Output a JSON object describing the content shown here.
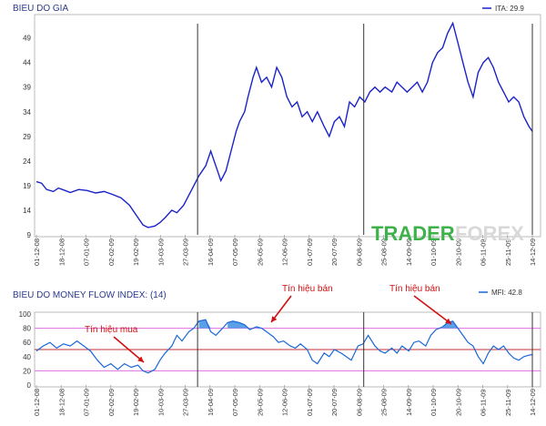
{
  "chart_data": [
    {
      "type": "line",
      "title": "BIEU DO GIA",
      "legend": "ITA: 29.9",
      "legend_position": "top-right",
      "ylim": [
        9,
        53
      ],
      "yticks": [
        9,
        14,
        19,
        24,
        29,
        34,
        39,
        44,
        49
      ],
      "x_tick_labels": [
        "01-12-08",
        "18-12-08",
        "07-01-09",
        "02-02-09",
        "19-02-09",
        "10-03-09",
        "27-03-09",
        "16-04-09",
        "07-05-09",
        "26-05-09",
        "12-06-09",
        "01-07-09",
        "20-07-09",
        "06-08-09",
        "25-08-09",
        "14-09-09",
        "01-10-09",
        "20-10-09",
        "06-11-09",
        "25-11-09",
        "14-12-09"
      ],
      "vertical_markers_at_tick_index": [
        6.5,
        13.2,
        20.0
      ],
      "series": [
        {
          "color": "#1a22c8",
          "points": [
            [
              0,
              19.8
            ],
            [
              0.3,
              19.5
            ],
            [
              0.6,
              18.2
            ],
            [
              1,
              17.8
            ],
            [
              1.3,
              18.5
            ],
            [
              1.7,
              18
            ],
            [
              2,
              17.6
            ],
            [
              2.5,
              18.2
            ],
            [
              3,
              18
            ],
            [
              3.5,
              17.5
            ],
            [
              4,
              17.8
            ],
            [
              4.5,
              17.2
            ],
            [
              5,
              16.5
            ],
            [
              5.5,
              15
            ],
            [
              6,
              12.5
            ],
            [
              6.3,
              11
            ],
            [
              6.6,
              10.5
            ],
            [
              7,
              10.8
            ],
            [
              7.3,
              11.5
            ],
            [
              7.6,
              12.5
            ],
            [
              8,
              14
            ],
            [
              8.3,
              13.5
            ],
            [
              8.7,
              15
            ],
            [
              9,
              17
            ],
            [
              9.3,
              19
            ],
            [
              9.6,
              21
            ],
            [
              10,
              23
            ],
            [
              10.3,
              26
            ],
            [
              10.6,
              23
            ],
            [
              10.9,
              20
            ],
            [
              11.2,
              22
            ],
            [
              11.5,
              26
            ],
            [
              11.8,
              30
            ],
            [
              12,
              32
            ],
            [
              12.3,
              34
            ],
            [
              12.5,
              37
            ],
            [
              12.8,
              41
            ],
            [
              13,
              43
            ],
            [
              13.3,
              40
            ],
            [
              13.6,
              41
            ],
            [
              13.9,
              39
            ],
            [
              14.2,
              43
            ],
            [
              14.5,
              41
            ],
            [
              14.8,
              37
            ],
            [
              15.1,
              35
            ],
            [
              15.4,
              36
            ],
            [
              15.7,
              33
            ],
            [
              16,
              34
            ],
            [
              16.3,
              32
            ],
            [
              16.6,
              34
            ],
            [
              17,
              31
            ],
            [
              17.3,
              29
            ],
            [
              17.6,
              32
            ],
            [
              17.9,
              33
            ],
            [
              18.2,
              31
            ],
            [
              18.5,
              36
            ],
            [
              18.8,
              35
            ],
            [
              19.1,
              37
            ],
            [
              19.4,
              36
            ],
            [
              19.7,
              38
            ],
            [
              20,
              39
            ],
            [
              20.3,
              38
            ],
            [
              20.6,
              39
            ],
            [
              21,
              38
            ],
            [
              21.3,
              40
            ],
            [
              21.6,
              39
            ],
            [
              21.9,
              38
            ],
            [
              22.2,
              39
            ],
            [
              22.5,
              40
            ],
            [
              22.8,
              38
            ],
            [
              23.1,
              40
            ],
            [
              23.4,
              44
            ],
            [
              23.7,
              46
            ],
            [
              24,
              47
            ],
            [
              24.3,
              50
            ],
            [
              24.6,
              52
            ],
            [
              24.9,
              48
            ],
            [
              25.2,
              44
            ],
            [
              25.5,
              40
            ],
            [
              25.8,
              37
            ],
            [
              26.1,
              42
            ],
            [
              26.4,
              44
            ],
            [
              26.7,
              45
            ],
            [
              27,
              43
            ],
            [
              27.3,
              40
            ],
            [
              27.6,
              38
            ],
            [
              27.9,
              36
            ],
            [
              28.2,
              37
            ],
            [
              28.5,
              36
            ],
            [
              28.8,
              33
            ],
            [
              29.1,
              31
            ],
            [
              29.3,
              30
            ]
          ],
          "note": "x in tick-index units (0 = 01-12-08 ... 20 = 14-12-09)"
        }
      ]
    },
    {
      "type": "line",
      "title": "BIEU DO MONEY FLOW INDEX: (14)",
      "legend": "MFI: 42.8",
      "legend_position": "top-right",
      "ylim": [
        0,
        100
      ],
      "yticks": [
        0,
        20,
        40,
        60,
        80,
        100
      ],
      "reference_lines": [
        {
          "value": 80,
          "color": "#e070e0"
        },
        {
          "value": 50,
          "color": "#c03030"
        },
        {
          "value": 20,
          "color": "#e070e0"
        }
      ],
      "x_tick_labels": [
        "01-12-08",
        "18-12-08",
        "07-01-09",
        "02-02-09",
        "19-02-09",
        "10-03-09",
        "27-03-09",
        "16-04-09",
        "07-05-09",
        "26-05-09",
        "12-06-09",
        "01-07-09",
        "20-07-09",
        "06-08-09",
        "25-08-09",
        "14-09-09",
        "01-10-09",
        "20-10-09",
        "06-11-09",
        "25-11-09",
        "14-12-09"
      ],
      "annotations": [
        {
          "text": "Tín hiệu mua",
          "target": [
            6.7,
            18
          ]
        },
        {
          "text": "Tín hiệu bán",
          "target": [
            13.4,
            82
          ]
        },
        {
          "text": "Tín hiệu bán",
          "target": [
            20.1,
            88
          ]
        }
      ],
      "series": [
        {
          "color": "#1a66d8",
          "points": [
            [
              0,
              48
            ],
            [
              0.4,
              55
            ],
            [
              0.8,
              60
            ],
            [
              1.2,
              52
            ],
            [
              1.6,
              58
            ],
            [
              2,
              55
            ],
            [
              2.4,
              62
            ],
            [
              2.8,
              55
            ],
            [
              3.2,
              48
            ],
            [
              3.6,
              35
            ],
            [
              4,
              25
            ],
            [
              4.4,
              30
            ],
            [
              4.8,
              22
            ],
            [
              5.2,
              30
            ],
            [
              5.6,
              25
            ],
            [
              6,
              28
            ],
            [
              6.3,
              20
            ],
            [
              6.6,
              17
            ],
            [
              7,
              22
            ],
            [
              7.3,
              35
            ],
            [
              7.6,
              45
            ],
            [
              8,
              55
            ],
            [
              8.3,
              70
            ],
            [
              8.6,
              62
            ],
            [
              9,
              75
            ],
            [
              9.3,
              80
            ],
            [
              9.6,
              90
            ],
            [
              10,
              92
            ],
            [
              10.3,
              75
            ],
            [
              10.6,
              70
            ],
            [
              11,
              80
            ],
            [
              11.3,
              88
            ],
            [
              11.6,
              90
            ],
            [
              12,
              88
            ],
            [
              12.3,
              85
            ],
            [
              12.6,
              78
            ],
            [
              13,
              82
            ],
            [
              13.3,
              80
            ],
            [
              13.6,
              75
            ],
            [
              14,
              68
            ],
            [
              14.3,
              60
            ],
            [
              14.6,
              62
            ],
            [
              15,
              55
            ],
            [
              15.3,
              52
            ],
            [
              15.6,
              58
            ],
            [
              16,
              50
            ],
            [
              16.3,
              35
            ],
            [
              16.6,
              30
            ],
            [
              17,
              45
            ],
            [
              17.3,
              40
            ],
            [
              17.6,
              50
            ],
            [
              18,
              45
            ],
            [
              18.3,
              40
            ],
            [
              18.6,
              35
            ],
            [
              19,
              55
            ],
            [
              19.3,
              58
            ],
            [
              19.6,
              70
            ],
            [
              20,
              55
            ],
            [
              20.3,
              48
            ],
            [
              20.6,
              45
            ],
            [
              21,
              52
            ],
            [
              21.3,
              45
            ],
            [
              21.6,
              55
            ],
            [
              22,
              48
            ],
            [
              22.3,
              60
            ],
            [
              22.6,
              62
            ],
            [
              23,
              55
            ],
            [
              23.3,
              70
            ],
            [
              23.6,
              78
            ],
            [
              24,
              82
            ],
            [
              24.3,
              88
            ],
            [
              24.6,
              90
            ],
            [
              24.9,
              80
            ],
            [
              25.2,
              70
            ],
            [
              25.5,
              60
            ],
            [
              25.8,
              55
            ],
            [
              26.1,
              40
            ],
            [
              26.4,
              30
            ],
            [
              26.7,
              45
            ],
            [
              27,
              55
            ],
            [
              27.3,
              50
            ],
            [
              27.6,
              55
            ],
            [
              27.9,
              45
            ],
            [
              28.2,
              38
            ],
            [
              28.5,
              35
            ],
            [
              28.8,
              40
            ],
            [
              29.1,
              42
            ],
            [
              29.3,
              43
            ]
          ],
          "note": "x in tick-index units (0 = 01-12-08 ... 20 = 14-12-09)"
        }
      ]
    }
  ],
  "watermark": {
    "part_a": "TRADER",
    "part_b": "FOREX"
  }
}
